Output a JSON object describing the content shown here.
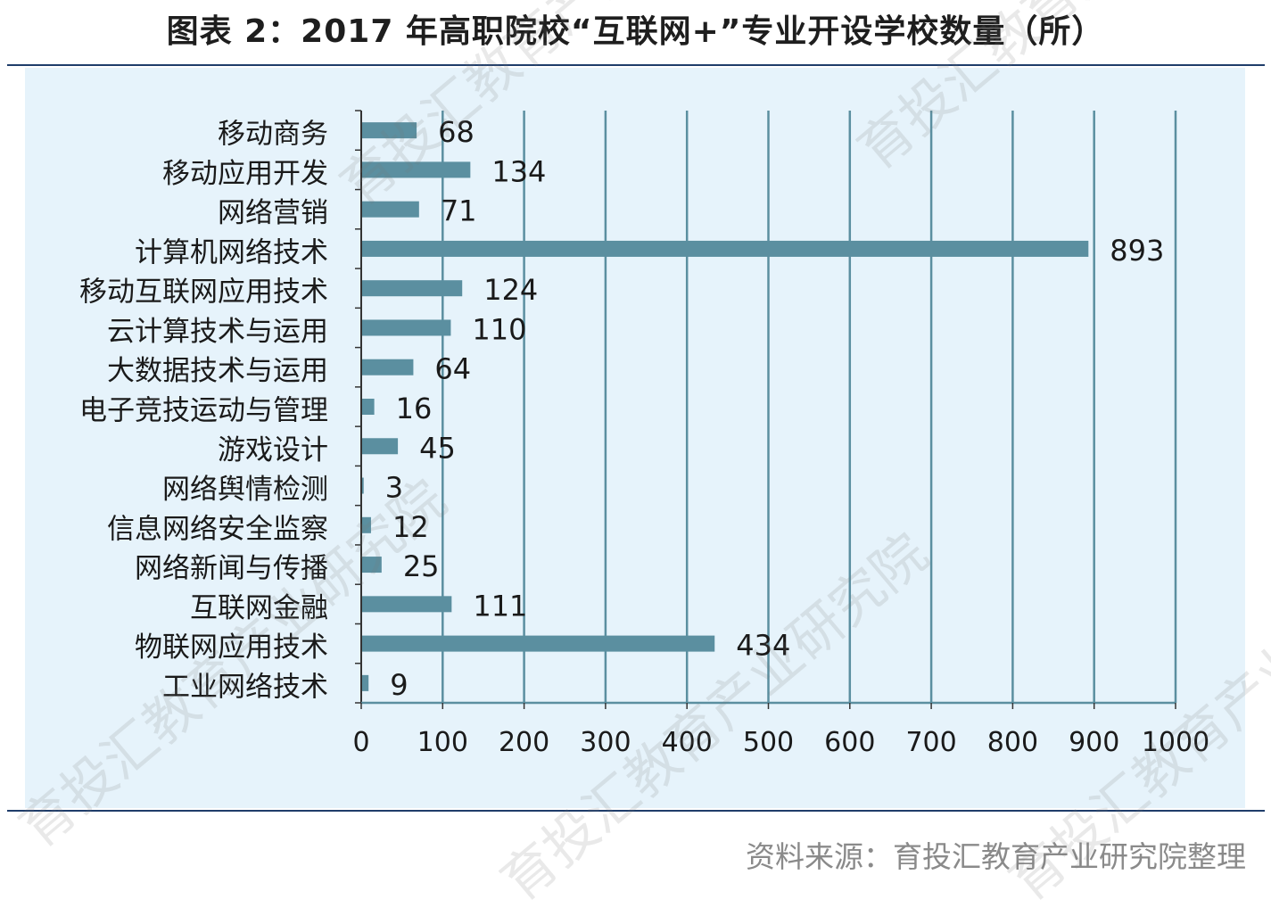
{
  "title": "图表 2：2017 年高职院校“互联网+”专业开设学校数量（所）",
  "source": "资料来源：育投汇教育产业研究院整理",
  "watermark": "育投汇教育产业研究院",
  "colors": {
    "bar": "#5b8fa0",
    "grid": "#5b8fa0",
    "panel": "#e6f3fb",
    "rule": "#1f3d6a"
  },
  "chart_data": {
    "type": "bar",
    "orientation": "horizontal",
    "categories": [
      "移动商务",
      "移动应用开发",
      "网络营销",
      "计算机网络技术",
      "移动互联网应用技术",
      "云计算技术与运用",
      "大数据技术与运用",
      "电子竞技运动与管理",
      "游戏设计",
      "网络舆情检测",
      "信息网络安全监察",
      "网络新闻与传播",
      "互联网金融",
      "物联网应用技术",
      "工业网络技术"
    ],
    "values": [
      68,
      134,
      71,
      893,
      124,
      110,
      64,
      16,
      45,
      3,
      12,
      25,
      111,
      434,
      9
    ],
    "xlim": [
      0,
      1000
    ],
    "xticks": [
      0,
      100,
      200,
      300,
      400,
      500,
      600,
      700,
      800,
      900,
      1000
    ],
    "grid": true,
    "data_labels": true,
    "legend": "none"
  }
}
